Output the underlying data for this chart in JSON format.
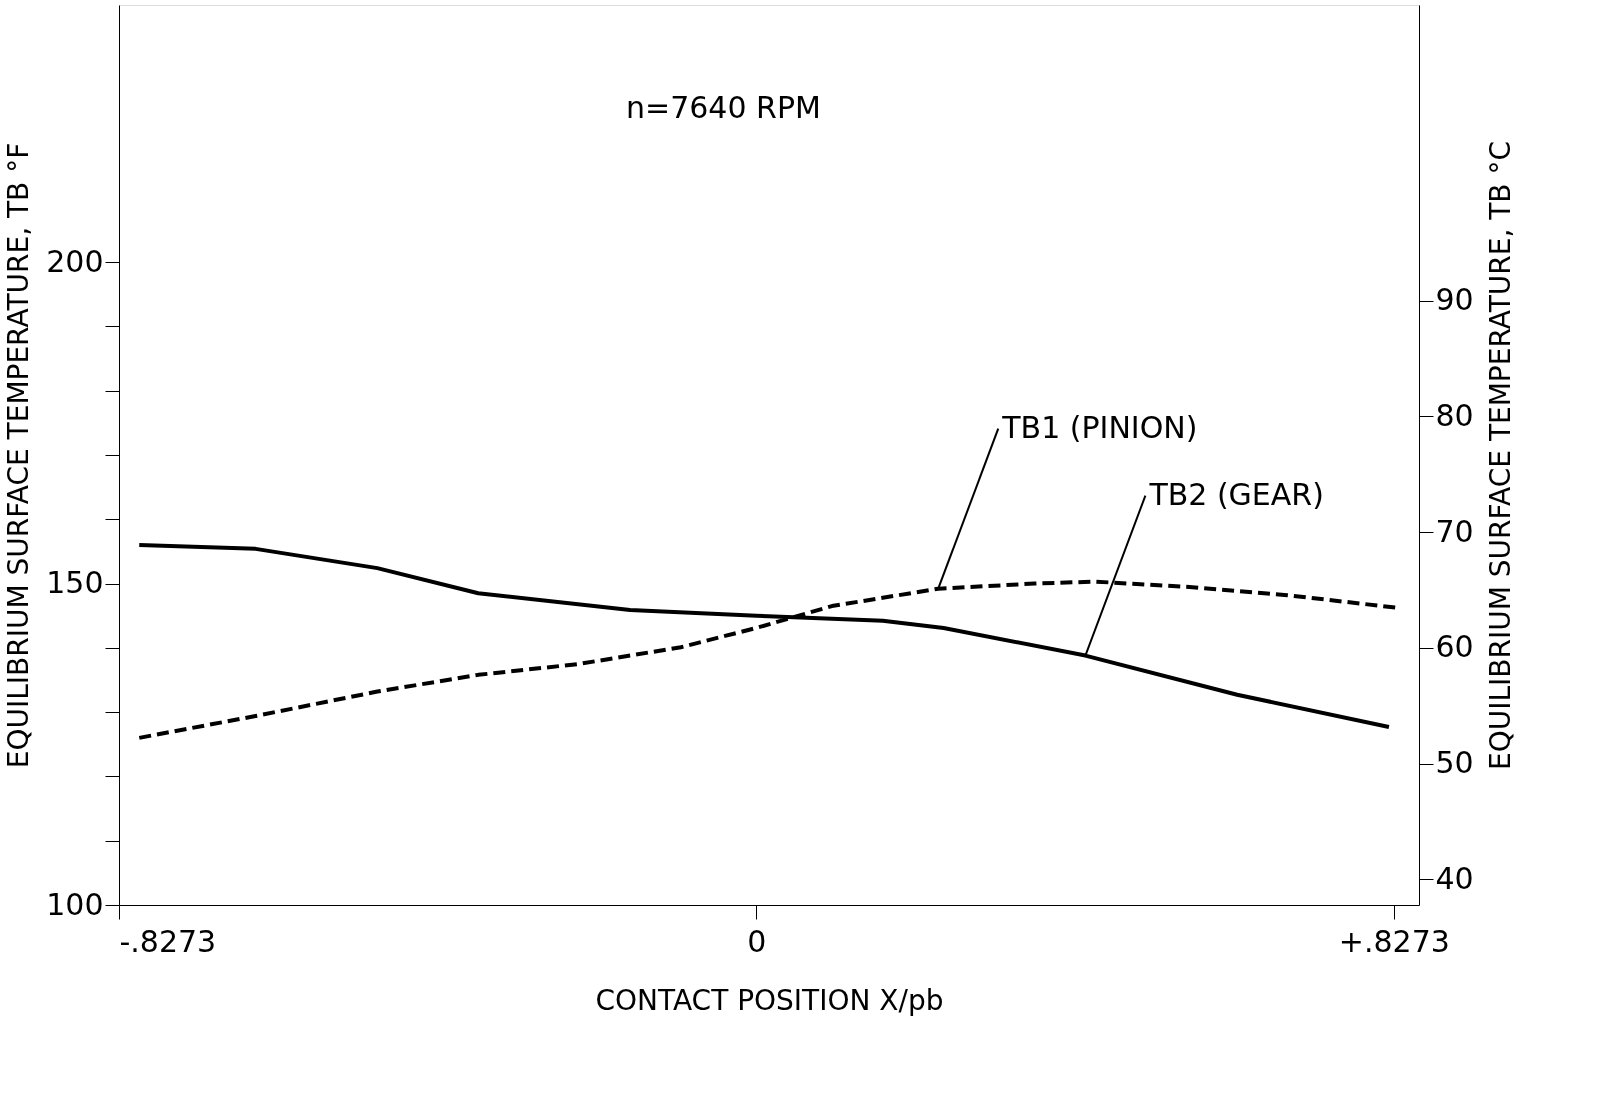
{
  "chart_data": {
    "type": "line",
    "xlabel": "CONTACT POSITION  X/pb",
    "ylabel": "EQUILIBRIUM SURFACE TEMPERATURE, TB °F",
    "y2label": "EQUILIBRIUM SURFACE TEMPERATURE, TB °C",
    "xlim": [
      -0.8273,
      0.86
    ],
    "xticks": [
      {
        "value": -0.8273,
        "label": "-.8273"
      },
      0,
      {
        "value": 0.8273,
        "label": "+.8273"
      }
    ],
    "ylim": [
      100,
      240
    ],
    "yticks": [
      100,
      {
        "value": 110,
        "label": null
      },
      {
        "value": 120,
        "label": null
      },
      {
        "value": 130,
        "label": null
      },
      {
        "value": 140,
        "label": null
      },
      150,
      {
        "value": 160,
        "label": null
      },
      {
        "value": 170,
        "label": null
      },
      {
        "value": 180,
        "label": null
      },
      {
        "value": 190,
        "label": null
      },
      200
    ],
    "y2lim": [
      37.78,
      115.56
    ],
    "y2ticks": [
      40,
      50,
      60,
      70,
      80,
      90
    ],
    "grid": false,
    "marker": "none",
    "series": [
      {
        "color": "#000000",
        "line_style": "dashed",
        "x": [
          -0.801,
          -0.65,
          -0.492,
          -0.361,
          -0.23,
          -0.098,
          0,
          0.098,
          0.236,
          0.361,
          0.44,
          0.558,
          0.689,
          0.834
        ],
        "values": [
          126.0,
          129.4,
          133.2,
          135.8,
          137.5,
          140.1,
          143.1,
          146.5,
          149.2,
          150.0,
          150.3,
          149.5,
          148.2,
          146.2
        ]
      },
      {
        "color": "#000000",
        "line_style": "solid",
        "x": [
          -0.801,
          -0.65,
          -0.492,
          -0.361,
          -0.164,
          0,
          0.164,
          0.243,
          0.427,
          0.624,
          0.821
        ],
        "values": [
          156.0,
          155.4,
          152.4,
          148.5,
          145.9,
          145.0,
          144.2,
          143.1,
          138.8,
          132.7,
          127.7
        ]
      }
    ],
    "annotations": [
      "n=7640 RPM",
      {
        "text": "TB1 (PINION)",
        "x": 0.236,
        "y": 149.2
      },
      {
        "text": "TB2 (GEAR)",
        "x": 0.427,
        "y": 138.8
      }
    ]
  }
}
